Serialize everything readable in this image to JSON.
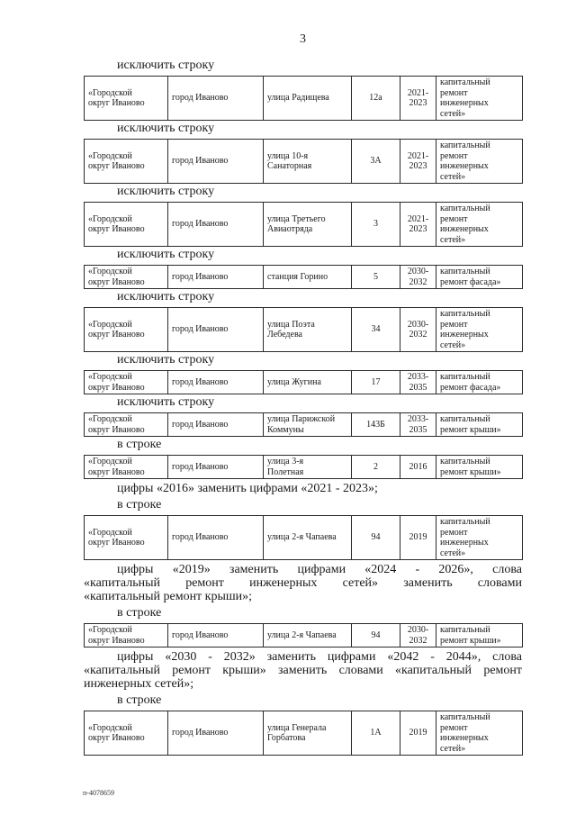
{
  "page": {
    "number": "3",
    "footer": "п-4078659"
  },
  "text_color": "#1a1a1a",
  "border_color": "#2a2a2a",
  "blocks": [
    {
      "kind": "heading",
      "text": "исключить строку"
    },
    {
      "kind": "table",
      "cells": [
        "«Городской\nокруг Иваново",
        "город Иваново",
        "улица Радищева",
        "12а",
        "2021-\n2023",
        "капитальный\nремонт\nинженерных\nсетей»"
      ]
    },
    {
      "kind": "heading",
      "text": "исключить строку"
    },
    {
      "kind": "table",
      "cells": [
        "«Городской\nокруг Иваново",
        "город Иваново",
        "улица 10-я\nСанаторная",
        "3А",
        "2021-\n2023",
        "капитальный\nремонт\nинженерных\nсетей»"
      ]
    },
    {
      "kind": "heading",
      "text": "исключить строку"
    },
    {
      "kind": "table",
      "cells": [
        "«Городской\nокруг Иваново",
        "город Иваново",
        "улица Третьего\nАвиаотряда",
        "3",
        "2021-\n2023",
        "капитальный\nремонт\nинженерных\nсетей»"
      ]
    },
    {
      "kind": "heading",
      "text": "исключить строку"
    },
    {
      "kind": "table",
      "cells": [
        "«Городской\nокруг Иваново",
        "город Иваново",
        "станция Горино",
        "5",
        "2030-\n2032",
        "капитальный\nремонт фасада»"
      ]
    },
    {
      "kind": "heading",
      "text": "исключить строку"
    },
    {
      "kind": "table",
      "cells": [
        "«Городской\nокруг Иваново",
        "город Иваново",
        "улица Поэта\nЛебедева",
        "34",
        "2030-\n2032",
        "капитальный\nремонт\nинженерных\nсетей»"
      ]
    },
    {
      "kind": "heading",
      "text": "исключить строку"
    },
    {
      "kind": "table",
      "cells": [
        "«Городской\nокруг Иваново",
        "город Иваново",
        "улица Жугина",
        "17",
        "2033-\n2035",
        "капитальный\nремонт фасада»"
      ]
    },
    {
      "kind": "heading",
      "text": "исключить строку"
    },
    {
      "kind": "table",
      "cells": [
        "«Городской\nокруг Иваново",
        "город Иваново",
        "улица Парижской\nКоммуны",
        "143Б",
        "2033-\n2035",
        "капитальный\nремонт крыши»"
      ]
    },
    {
      "kind": "heading",
      "text": "в строке"
    },
    {
      "kind": "table",
      "cells": [
        "«Городской\nокруг Иваново",
        "город Иваново",
        "улица 3-я\nПолетная",
        "2",
        "2016",
        "капитальный\nремонт крыши»"
      ]
    },
    {
      "kind": "para",
      "lines": [
        "цифры «2016» заменить цифрами «2021 - 2023»;"
      ]
    },
    {
      "kind": "heading",
      "text": "в строке"
    },
    {
      "kind": "table",
      "cells": [
        "«Городской\nокруг Иваново",
        "город Иваново",
        "улица 2-я Чапаева",
        "94",
        "2019",
        "капитальный\nремонт\nинженерных\nсетей»"
      ]
    },
    {
      "kind": "para",
      "lines": [
        "цифры «2019» заменить цифрами «2024 - 2026», слова",
        "«капитальный ремонт инженерных сетей» заменить словами",
        "«капитальный ремонт крыши»;"
      ]
    },
    {
      "kind": "heading",
      "text": "в строке"
    },
    {
      "kind": "table",
      "cells": [
        "«Городской\nокруг Иваново",
        "город Иваново",
        "улица 2-я Чапаева",
        "94",
        "2030-\n2032",
        "капитальный\nремонт крыши»"
      ]
    },
    {
      "kind": "para",
      "lines": [
        "цифры «2030 - 2032» заменить цифрами «2042 - 2044», слова",
        "«капитальный ремонт крыши» заменить словами «капитальный ремонт",
        "инженерных сетей»;"
      ]
    },
    {
      "kind": "heading",
      "text": "в строке"
    },
    {
      "kind": "table",
      "cells": [
        "«Городской\nокруг Иваново",
        "город Иваново",
        "улица Генерала\nГорбатова",
        "1А",
        "2019",
        "капитальный\nремонт\nинженерных\nсетей»"
      ]
    }
  ]
}
